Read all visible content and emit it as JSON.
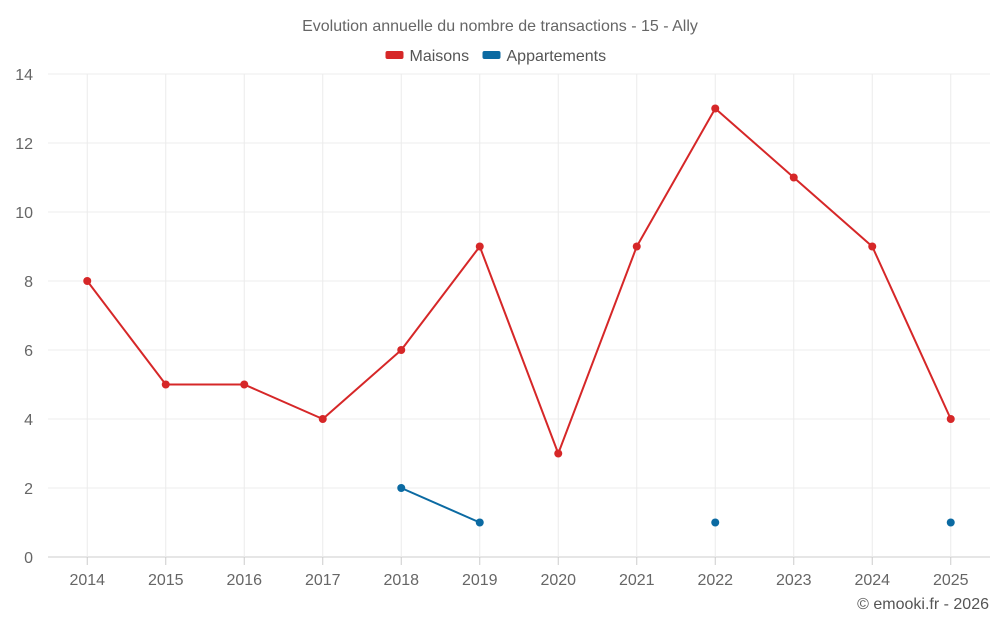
{
  "chart_data": {
    "type": "line",
    "title": "Evolution annuelle du nombre de transactions - 15 - Ally",
    "categories": [
      "2014",
      "2015",
      "2016",
      "2017",
      "2018",
      "2019",
      "2020",
      "2021",
      "2022",
      "2023",
      "2024",
      "2025"
    ],
    "ylim": [
      0,
      14
    ],
    "yticks": [
      0,
      2,
      4,
      6,
      8,
      10,
      12,
      14
    ],
    "grid": true,
    "legend_position": "top-center",
    "series": [
      {
        "name": "Maisons",
        "color": "#d62728",
        "values": [
          8,
          5,
          5,
          4,
          6,
          9,
          3,
          9,
          13,
          11,
          9,
          4
        ]
      },
      {
        "name": "Appartements",
        "color": "#0b6aa2",
        "values": [
          null,
          null,
          null,
          null,
          2,
          1,
          null,
          null,
          1,
          null,
          null,
          1
        ]
      }
    ],
    "credit": "© emooki.fr - 2026"
  }
}
